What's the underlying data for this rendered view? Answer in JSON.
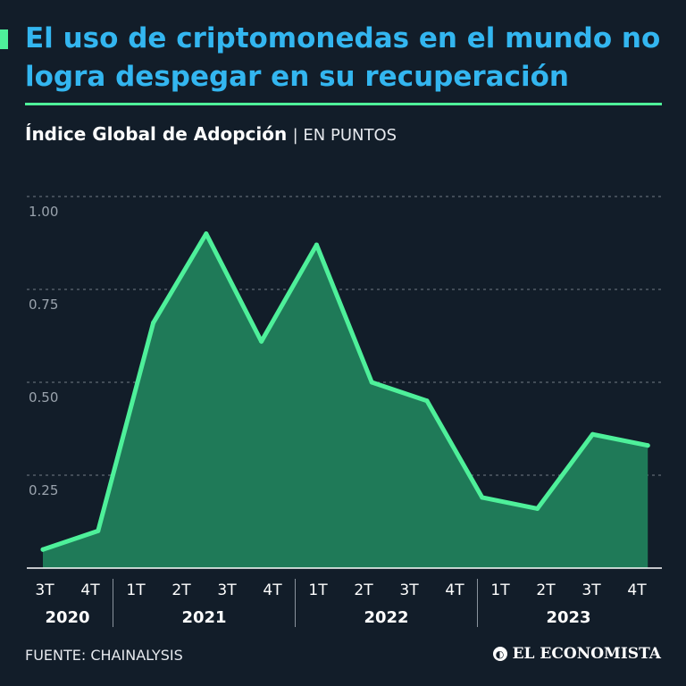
{
  "header": {
    "title": "El uso de criptomonedas en el mundo no logra despegar en su recuperación",
    "subtitle": "Índice Global de Adopción",
    "unit": "| EN PUNTOS"
  },
  "footer": {
    "source": "FUENTE: CHAINALYSIS",
    "logo_text": "EL ECONOMISTA"
  },
  "colors": {
    "background": "#121d29",
    "title": "#33b6f0",
    "accent": "#4ef09a",
    "area_fill": "#1f7a58",
    "grid": "#9aa3ad",
    "tick_text": "#9aa3ad"
  },
  "chart_data": {
    "type": "area",
    "title": "Índice Global de Adopción",
    "ylabel": "EN PUNTOS",
    "ylim": [
      0,
      1.0
    ],
    "yticks": [
      0.25,
      0.5,
      0.75,
      1.0
    ],
    "ytick_labels": [
      "0.25",
      "0.50",
      "0.75",
      "1.00"
    ],
    "grid": true,
    "categories": [
      "3T",
      "4T",
      "1T",
      "2T",
      "3T",
      "4T",
      "1T",
      "2T",
      "3T",
      "4T",
      "1T",
      "2T",
      "3T",
      "4T"
    ],
    "groups": [
      {
        "label": "2020",
        "count": 2
      },
      {
        "label": "2021",
        "count": 4
      },
      {
        "label": "2022",
        "count": 4
      },
      {
        "label": "2023",
        "count": 4
      }
    ],
    "points": [
      {
        "x": 0.0,
        "value": 0.05
      },
      {
        "x": 1.2,
        "value": 0.1
      },
      {
        "x": 2.4,
        "value": 0.66
      },
      {
        "x": 3.55,
        "value": 0.9
      },
      {
        "x": 4.75,
        "value": 0.61
      },
      {
        "x": 5.95,
        "value": 0.87
      },
      {
        "x": 7.15,
        "value": 0.5
      },
      {
        "x": 8.35,
        "value": 0.45
      },
      {
        "x": 9.55,
        "value": 0.19
      },
      {
        "x": 10.75,
        "value": 0.16
      },
      {
        "x": 11.95,
        "value": 0.36
      },
      {
        "x": 13.15,
        "value": 0.33
      }
    ]
  }
}
